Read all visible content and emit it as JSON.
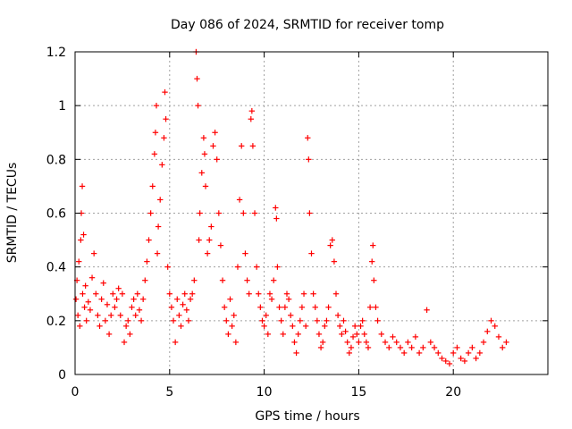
{
  "chart_data": {
    "type": "scatter",
    "title": "Day 086 of 2024, SRMTID for receiver tomp",
    "xlabel": "GPS time / hours",
    "ylabel": "SRMTID / TECUs",
    "xlim": [
      0,
      25
    ],
    "ylim": [
      0,
      1.2
    ],
    "xticks": [
      0,
      5,
      10,
      15,
      20
    ],
    "xtick_labels": [
      "0",
      "5",
      "10",
      "15",
      "20"
    ],
    "yticks": [
      0,
      0.2,
      0.4,
      0.6,
      0.8,
      1,
      1.2
    ],
    "ytick_labels": [
      "0",
      "0.2",
      "0.4",
      "0.6",
      "0.8",
      "1",
      "1.2"
    ],
    "grid": true,
    "marker": "+",
    "color": "#ff0000",
    "series": [
      {
        "name": "SRMTID",
        "points": [
          [
            0.05,
            0.28
          ],
          [
            0.1,
            0.35
          ],
          [
            0.15,
            0.22
          ],
          [
            0.2,
            0.42
          ],
          [
            0.25,
            0.18
          ],
          [
            0.3,
            0.5
          ],
          [
            0.33,
            0.6
          ],
          [
            0.38,
            0.7
          ],
          [
            0.4,
            0.3
          ],
          [
            0.45,
            0.52
          ],
          [
            0.5,
            0.25
          ],
          [
            0.55,
            0.33
          ],
          [
            0.6,
            0.2
          ],
          [
            0.7,
            0.27
          ],
          [
            0.8,
            0.24
          ],
          [
            0.9,
            0.36
          ],
          [
            1.0,
            0.45
          ],
          [
            1.1,
            0.3
          ],
          [
            1.2,
            0.22
          ],
          [
            1.3,
            0.18
          ],
          [
            1.4,
            0.28
          ],
          [
            1.5,
            0.34
          ],
          [
            1.6,
            0.2
          ],
          [
            1.7,
            0.26
          ],
          [
            1.8,
            0.15
          ],
          [
            1.9,
            0.22
          ],
          [
            2.0,
            0.3
          ],
          [
            2.1,
            0.25
          ],
          [
            2.2,
            0.28
          ],
          [
            2.3,
            0.32
          ],
          [
            2.4,
            0.22
          ],
          [
            2.5,
            0.3
          ],
          [
            2.6,
            0.12
          ],
          [
            2.7,
            0.18
          ],
          [
            2.8,
            0.2
          ],
          [
            2.9,
            0.15
          ],
          [
            3.0,
            0.25
          ],
          [
            3.1,
            0.28
          ],
          [
            3.2,
            0.22
          ],
          [
            3.3,
            0.3
          ],
          [
            3.4,
            0.24
          ],
          [
            3.5,
            0.2
          ],
          [
            3.6,
            0.28
          ],
          [
            3.7,
            0.35
          ],
          [
            3.8,
            0.42
          ],
          [
            3.9,
            0.5
          ],
          [
            4.0,
            0.6
          ],
          [
            4.1,
            0.7
          ],
          [
            4.2,
            0.82
          ],
          [
            4.25,
            0.9
          ],
          [
            4.3,
            1.0
          ],
          [
            4.35,
            0.45
          ],
          [
            4.4,
            0.55
          ],
          [
            4.5,
            0.65
          ],
          [
            4.6,
            0.78
          ],
          [
            4.7,
            0.88
          ],
          [
            4.75,
            1.05
          ],
          [
            4.8,
            0.95
          ],
          [
            4.9,
            0.4
          ],
          [
            5.0,
            0.3
          ],
          [
            5.1,
            0.25
          ],
          [
            5.2,
            0.2
          ],
          [
            5.3,
            0.12
          ],
          [
            5.4,
            0.28
          ],
          [
            5.5,
            0.22
          ],
          [
            5.6,
            0.18
          ],
          [
            5.7,
            0.26
          ],
          [
            5.8,
            0.3
          ],
          [
            5.9,
            0.24
          ],
          [
            6.0,
            0.2
          ],
          [
            6.1,
            0.28
          ],
          [
            6.2,
            0.3
          ],
          [
            6.3,
            0.35
          ],
          [
            6.4,
            1.2
          ],
          [
            6.45,
            1.1
          ],
          [
            6.5,
            1.0
          ],
          [
            6.55,
            0.5
          ],
          [
            6.6,
            0.6
          ],
          [
            6.7,
            0.75
          ],
          [
            6.8,
            0.88
          ],
          [
            6.85,
            0.82
          ],
          [
            6.9,
            0.7
          ],
          [
            7.0,
            0.45
          ],
          [
            7.1,
            0.5
          ],
          [
            7.2,
            0.55
          ],
          [
            7.3,
            0.85
          ],
          [
            7.4,
            0.9
          ],
          [
            7.5,
            0.8
          ],
          [
            7.6,
            0.6
          ],
          [
            7.7,
            0.48
          ],
          [
            7.8,
            0.35
          ],
          [
            7.9,
            0.25
          ],
          [
            8.0,
            0.2
          ],
          [
            8.1,
            0.15
          ],
          [
            8.2,
            0.28
          ],
          [
            8.3,
            0.18
          ],
          [
            8.4,
            0.22
          ],
          [
            8.5,
            0.12
          ],
          [
            8.6,
            0.4
          ],
          [
            8.7,
            0.65
          ],
          [
            8.8,
            0.85
          ],
          [
            8.9,
            0.6
          ],
          [
            9.0,
            0.45
          ],
          [
            9.1,
            0.35
          ],
          [
            9.2,
            0.3
          ],
          [
            9.3,
            0.95
          ],
          [
            9.35,
            0.98
          ],
          [
            9.4,
            0.85
          ],
          [
            9.5,
            0.6
          ],
          [
            9.6,
            0.4
          ],
          [
            9.7,
            0.3
          ],
          [
            9.8,
            0.25
          ],
          [
            9.9,
            0.2
          ],
          [
            10.0,
            0.18
          ],
          [
            10.1,
            0.22
          ],
          [
            10.2,
            0.15
          ],
          [
            10.3,
            0.3
          ],
          [
            10.4,
            0.28
          ],
          [
            10.5,
            0.35
          ],
          [
            10.6,
            0.62
          ],
          [
            10.65,
            0.58
          ],
          [
            10.7,
            0.4
          ],
          [
            10.8,
            0.25
          ],
          [
            10.9,
            0.2
          ],
          [
            11.0,
            0.15
          ],
          [
            11.1,
            0.25
          ],
          [
            11.2,
            0.3
          ],
          [
            11.3,
            0.28
          ],
          [
            11.4,
            0.22
          ],
          [
            11.5,
            0.18
          ],
          [
            11.6,
            0.12
          ],
          [
            11.7,
            0.08
          ],
          [
            11.8,
            0.15
          ],
          [
            11.9,
            0.2
          ],
          [
            12.0,
            0.25
          ],
          [
            12.1,
            0.3
          ],
          [
            12.2,
            0.18
          ],
          [
            12.3,
            0.88
          ],
          [
            12.35,
            0.8
          ],
          [
            12.4,
            0.6
          ],
          [
            12.5,
            0.45
          ],
          [
            12.6,
            0.3
          ],
          [
            12.7,
            0.25
          ],
          [
            12.8,
            0.2
          ],
          [
            12.9,
            0.15
          ],
          [
            13.0,
            0.1
          ],
          [
            13.1,
            0.12
          ],
          [
            13.2,
            0.18
          ],
          [
            13.3,
            0.2
          ],
          [
            13.4,
            0.25
          ],
          [
            13.5,
            0.48
          ],
          [
            13.6,
            0.5
          ],
          [
            13.7,
            0.42
          ],
          [
            13.8,
            0.3
          ],
          [
            13.9,
            0.22
          ],
          [
            14.0,
            0.18
          ],
          [
            14.1,
            0.15
          ],
          [
            14.2,
            0.2
          ],
          [
            14.3,
            0.16
          ],
          [
            14.4,
            0.12
          ],
          [
            14.5,
            0.08
          ],
          [
            14.6,
            0.1
          ],
          [
            14.7,
            0.14
          ],
          [
            14.8,
            0.18
          ],
          [
            14.9,
            0.15
          ],
          [
            15.0,
            0.12
          ],
          [
            15.1,
            0.18
          ],
          [
            15.2,
            0.2
          ],
          [
            15.3,
            0.15
          ],
          [
            15.4,
            0.12
          ],
          [
            15.5,
            0.1
          ],
          [
            15.6,
            0.25
          ],
          [
            15.7,
            0.42
          ],
          [
            15.75,
            0.48
          ],
          [
            15.8,
            0.35
          ],
          [
            15.9,
            0.25
          ],
          [
            16.0,
            0.2
          ],
          [
            16.2,
            0.15
          ],
          [
            16.4,
            0.12
          ],
          [
            16.6,
            0.1
          ],
          [
            16.8,
            0.14
          ],
          [
            17.0,
            0.12
          ],
          [
            17.2,
            0.1
          ],
          [
            17.4,
            0.08
          ],
          [
            17.6,
            0.12
          ],
          [
            17.8,
            0.1
          ],
          [
            18.0,
            0.14
          ],
          [
            18.2,
            0.08
          ],
          [
            18.4,
            0.1
          ],
          [
            18.6,
            0.24
          ],
          [
            18.8,
            0.12
          ],
          [
            19.0,
            0.1
          ],
          [
            19.2,
            0.08
          ],
          [
            19.4,
            0.06
          ],
          [
            19.6,
            0.05
          ],
          [
            19.8,
            0.04
          ],
          [
            20.0,
            0.08
          ],
          [
            20.2,
            0.1
          ],
          [
            20.4,
            0.06
          ],
          [
            20.6,
            0.05
          ],
          [
            20.8,
            0.08
          ],
          [
            21.0,
            0.1
          ],
          [
            21.2,
            0.06
          ],
          [
            21.4,
            0.08
          ],
          [
            21.6,
            0.12
          ],
          [
            21.8,
            0.16
          ],
          [
            22.0,
            0.2
          ],
          [
            22.2,
            0.18
          ],
          [
            22.4,
            0.14
          ],
          [
            22.6,
            0.1
          ],
          [
            22.8,
            0.12
          ]
        ]
      }
    ]
  }
}
